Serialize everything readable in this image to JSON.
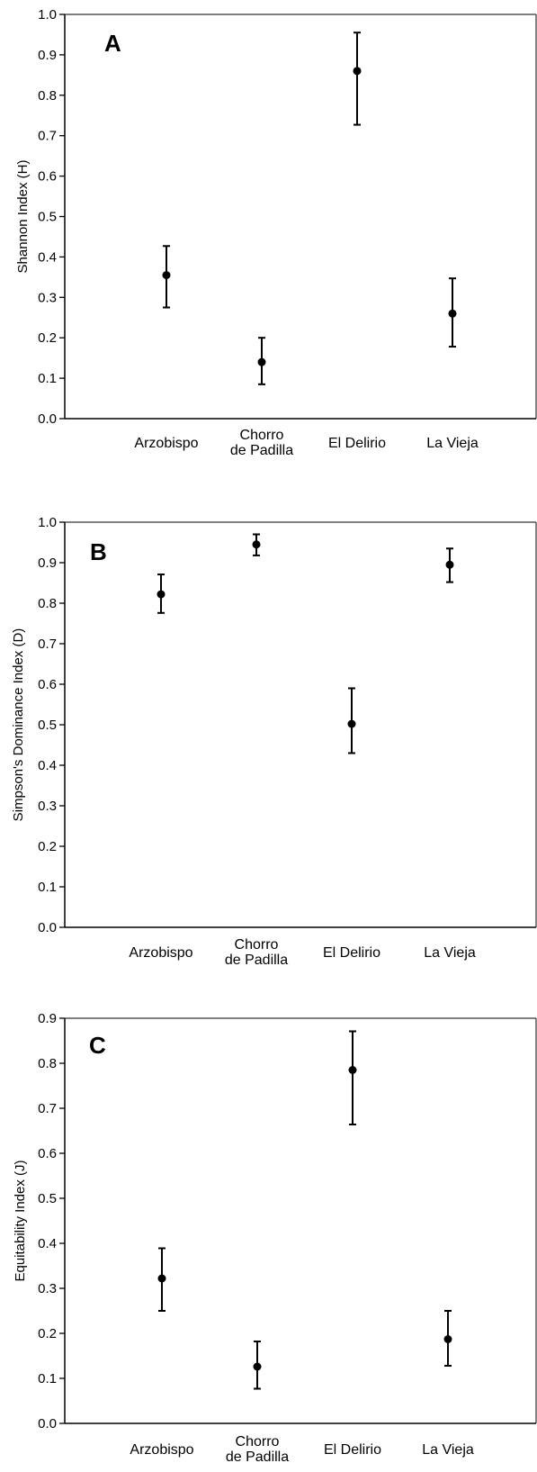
{
  "colors": {
    "marker": "#000000",
    "axis": "#000000",
    "frame": "#333333"
  },
  "chart_data": [
    {
      "type": "scatter",
      "panel_label": "A",
      "ylabel": "Shannon Index (H)",
      "ylim": [
        0,
        1.0
      ],
      "yticks": [
        "0.0",
        "0.1",
        "0.2",
        "0.3",
        "0.4",
        "0.5",
        "0.6",
        "0.7",
        "0.8",
        "0.9",
        "1.0"
      ],
      "categories": [
        [
          "Arzobispo"
        ],
        [
          "Chorro",
          "de Padilla"
        ],
        [
          "El Delirio"
        ],
        [
          "La Vieja"
        ]
      ],
      "values": [
        0.355,
        0.14,
        0.86,
        0.26
      ],
      "error_low": [
        0.275,
        0.085,
        0.727,
        0.178
      ],
      "error_high": [
        0.427,
        0.2,
        0.955,
        0.347
      ]
    },
    {
      "type": "scatter",
      "panel_label": "B",
      "ylabel": "Simpson's Dominance Index (D)",
      "ylim": [
        0,
        1.0
      ],
      "yticks": [
        "0.0",
        "0.1",
        "0.2",
        "0.3",
        "0.4",
        "0.5",
        "0.6",
        "0.7",
        "0.8",
        "0.9",
        "1.0"
      ],
      "categories": [
        [
          "Arzobispo"
        ],
        [
          "Chorro",
          "de Padilla"
        ],
        [
          "El Delirio"
        ],
        [
          "La Vieja"
        ]
      ],
      "values": [
        0.822,
        0.945,
        0.502,
        0.895
      ],
      "error_low": [
        0.776,
        0.918,
        0.43,
        0.852
      ],
      "error_high": [
        0.871,
        0.97,
        0.59,
        0.935
      ]
    },
    {
      "type": "scatter",
      "panel_label": "C",
      "ylabel": "Equitability Index (J)",
      "ylim": [
        0,
        0.9
      ],
      "yticks": [
        "0.0",
        "0.1",
        "0.2",
        "0.3",
        "0.4",
        "0.5",
        "0.6",
        "0.7",
        "0.8",
        "0.9"
      ],
      "categories": [
        [
          "Arzobispo"
        ],
        [
          "Chorro",
          "de Padilla"
        ],
        [
          "El Delirio"
        ],
        [
          "La Vieja"
        ]
      ],
      "values": [
        0.322,
        0.126,
        0.785,
        0.187
      ],
      "error_low": [
        0.25,
        0.077,
        0.664,
        0.128
      ],
      "error_high": [
        0.389,
        0.182,
        0.871,
        0.25
      ]
    }
  ]
}
